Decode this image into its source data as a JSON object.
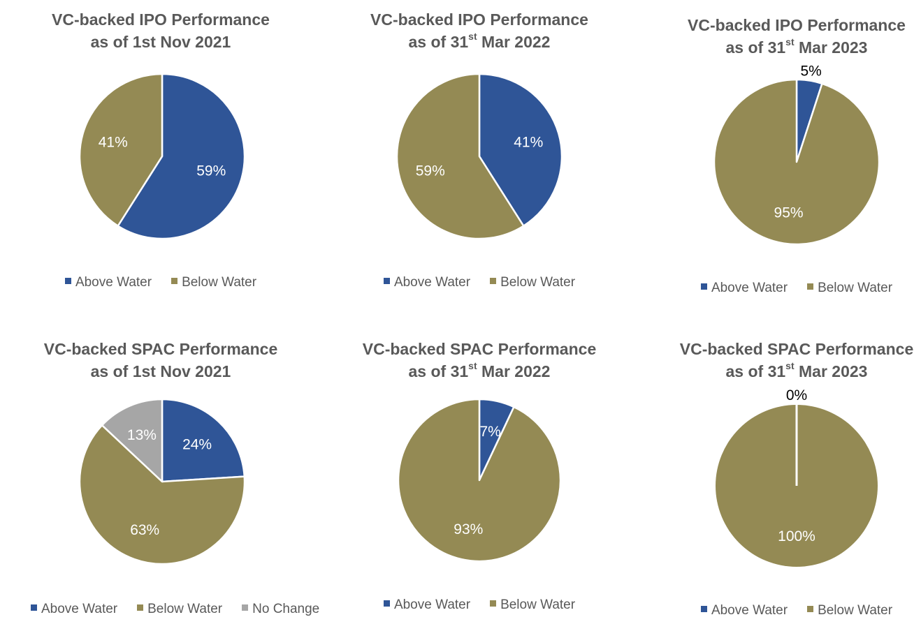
{
  "colors": {
    "above_water": "#2F5597",
    "below_water": "#948A54",
    "no_change": "#A6A6A6",
    "title_text": "#595959",
    "label_inside": "#FFFFFF",
    "label_outside": "#000000"
  },
  "chart_data": [
    {
      "type": "pie",
      "title_line1": "VC-backed IPO Performance",
      "title_pre": "as of 1st Nov 2021",
      "title_sup": "",
      "title_post": "",
      "slices": [
        {
          "name": "Above Water",
          "value": 59,
          "label": "59%"
        },
        {
          "name": "Below Water",
          "value": 41,
          "label": "41%"
        }
      ],
      "legend": [
        "Above Water",
        "Below Water"
      ],
      "legend_position": "bottom"
    },
    {
      "type": "pie",
      "title_line1": "VC-backed IPO Performance",
      "title_pre": "as of 31",
      "title_sup": "st",
      "title_post": " Mar 2022",
      "slices": [
        {
          "name": "Above Water",
          "value": 41,
          "label": "41%"
        },
        {
          "name": "Below Water",
          "value": 59,
          "label": "59%"
        }
      ],
      "legend": [
        "Above Water",
        "Below Water"
      ],
      "legend_position": "bottom"
    },
    {
      "type": "pie",
      "title_line1": "VC-backed IPO Performance",
      "title_pre": "as of 31",
      "title_sup": "st",
      "title_post": " Mar 2023",
      "slices": [
        {
          "name": "Above Water",
          "value": 5,
          "label": "5%",
          "label_outside": true
        },
        {
          "name": "Below Water",
          "value": 95,
          "label": "95%"
        }
      ],
      "legend": [
        "Above Water",
        "Below Water"
      ],
      "legend_position": "bottom"
    },
    {
      "type": "pie",
      "title_line1": "VC-backed SPAC Performance",
      "title_pre": "as of 1st Nov 2021",
      "title_sup": "",
      "title_post": "",
      "slices": [
        {
          "name": "Above Water",
          "value": 24,
          "label": "24%"
        },
        {
          "name": "Below Water",
          "value": 63,
          "label": "63%"
        },
        {
          "name": "No Change",
          "value": 13,
          "label": "13%"
        }
      ],
      "legend": [
        "Above Water",
        "Below Water",
        "No Change"
      ],
      "legend_position": "bottom"
    },
    {
      "type": "pie",
      "title_line1": "VC-backed SPAC Performance",
      "title_pre": "as of 31",
      "title_sup": "st",
      "title_post": " Mar 2022",
      "slices": [
        {
          "name": "Above Water",
          "value": 7,
          "label": "7%"
        },
        {
          "name": "Below Water",
          "value": 93,
          "label": "93%"
        }
      ],
      "legend": [
        "Above Water",
        "Below Water"
      ],
      "legend_position": "bottom"
    },
    {
      "type": "pie",
      "title_line1": "VC-backed SPAC Performance",
      "title_pre": "as of 31",
      "title_sup": "st",
      "title_post": " Mar 2023",
      "slices": [
        {
          "name": "Above Water",
          "value": 0,
          "label": "0%",
          "label_outside": true
        },
        {
          "name": "Below Water",
          "value": 100,
          "label": "100%"
        }
      ],
      "legend": [
        "Above Water",
        "Below Water"
      ],
      "legend_position": "bottom"
    }
  ]
}
